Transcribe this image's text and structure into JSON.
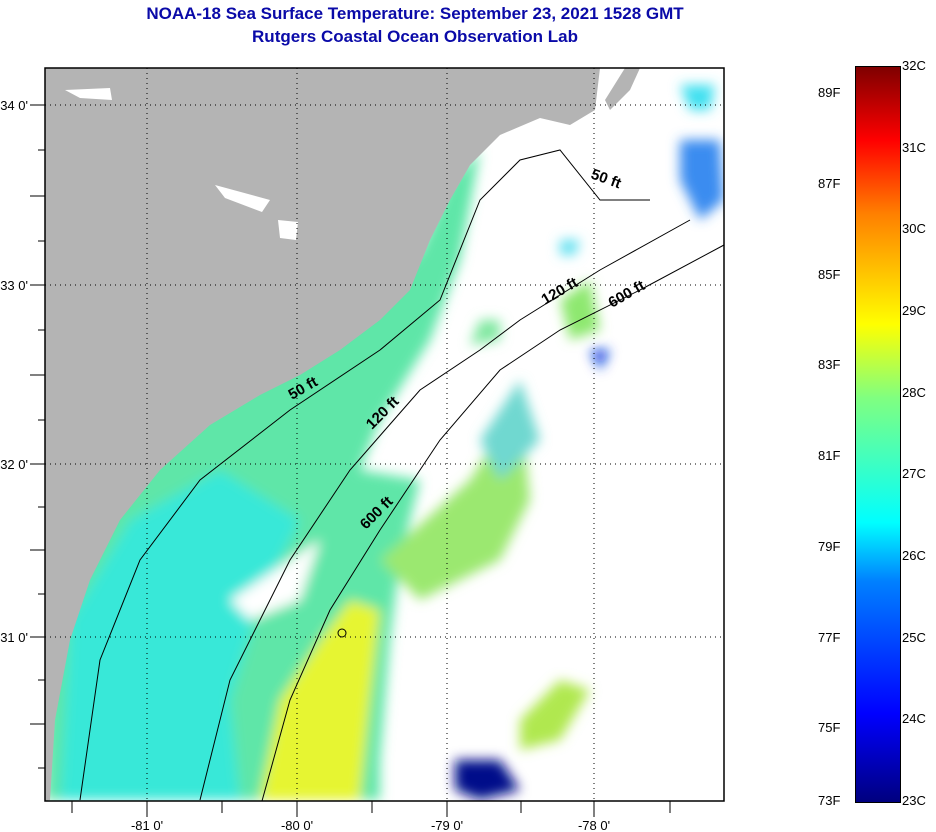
{
  "title": "NOAA-18 Sea Surface Temperature:  September 23, 2021 1528 GMT",
  "subtitle": "Rutgers Coastal Ocean Observation Lab",
  "map": {
    "lat_labels": [
      "34 0'",
      "33 0'",
      "32 0'",
      "31 0'"
    ],
    "lon_labels": [
      "-81 0'",
      "-80 0'",
      "-79 0'",
      "-78 0'"
    ],
    "contours": [
      {
        "label": "50 ft"
      },
      {
        "label": "50 ft"
      },
      {
        "label": "120 ft"
      },
      {
        "label": "120 ft"
      },
      {
        "label": "600 ft"
      },
      {
        "label": "600 ft"
      }
    ],
    "colors": {
      "land": "#b4b4b4",
      "cloud": "#ffffff",
      "frame": "#000000"
    }
  },
  "colorbar": {
    "fahrenheit": [
      "89F",
      "87F",
      "85F",
      "83F",
      "81F",
      "79F",
      "77F",
      "75F",
      "73F"
    ],
    "celsius": [
      "32C",
      "31C",
      "30C",
      "29C",
      "28C",
      "27C",
      "26C",
      "25C",
      "24C",
      "23C"
    ],
    "range_c": [
      23,
      32
    ]
  }
}
